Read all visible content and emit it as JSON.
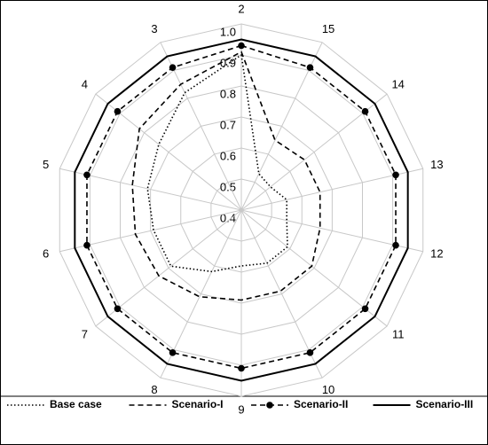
{
  "chart_data": {
    "type": "radar",
    "categories": [
      "2",
      "15",
      "14",
      "13",
      "12",
      "11",
      "10",
      "9",
      "8",
      "7",
      "6",
      "5",
      "4",
      "3"
    ],
    "rlim": [
      0.4,
      1.0
    ],
    "rticks": [
      0.4,
      0.5,
      0.6,
      0.7,
      0.8,
      0.9,
      {
        "value": 1.0,
        "label": "1.0"
      }
    ],
    "grid": true,
    "legend": "bottom",
    "series": [
      {
        "name": "Base case",
        "color": "#000000",
        "dash": "dotted",
        "marker": "none",
        "values": [
          0.9,
          0.53,
          0.52,
          0.55,
          0.55,
          0.59,
          0.59,
          0.58,
          0.62,
          0.69,
          0.69,
          0.71,
          0.74,
          0.82
        ]
      },
      {
        "name": "Scenario-I",
        "color": "#000000",
        "dash": "dashed",
        "marker": "none",
        "values": [
          0.91,
          0.65,
          0.66,
          0.66,
          0.66,
          0.69,
          0.69,
          0.69,
          0.71,
          0.74,
          0.75,
          0.76,
          0.82,
          0.85
        ]
      },
      {
        "name": "Scenario-II",
        "color": "#000000",
        "dash": "dashed",
        "marker": "circle",
        "values": [
          0.93,
          0.91,
          0.91,
          0.91,
          0.91,
          0.91,
          0.91,
          0.91,
          0.91,
          0.91,
          0.91,
          0.91,
          0.91,
          0.91
        ]
      },
      {
        "name": "Scenario-III",
        "color": "#000000",
        "dash": "solid",
        "marker": "none",
        "values": [
          0.95,
          0.95,
          0.95,
          0.95,
          0.95,
          0.95,
          0.95,
          0.95,
          0.95,
          0.95,
          0.95,
          0.95,
          0.95,
          0.95
        ]
      }
    ]
  }
}
